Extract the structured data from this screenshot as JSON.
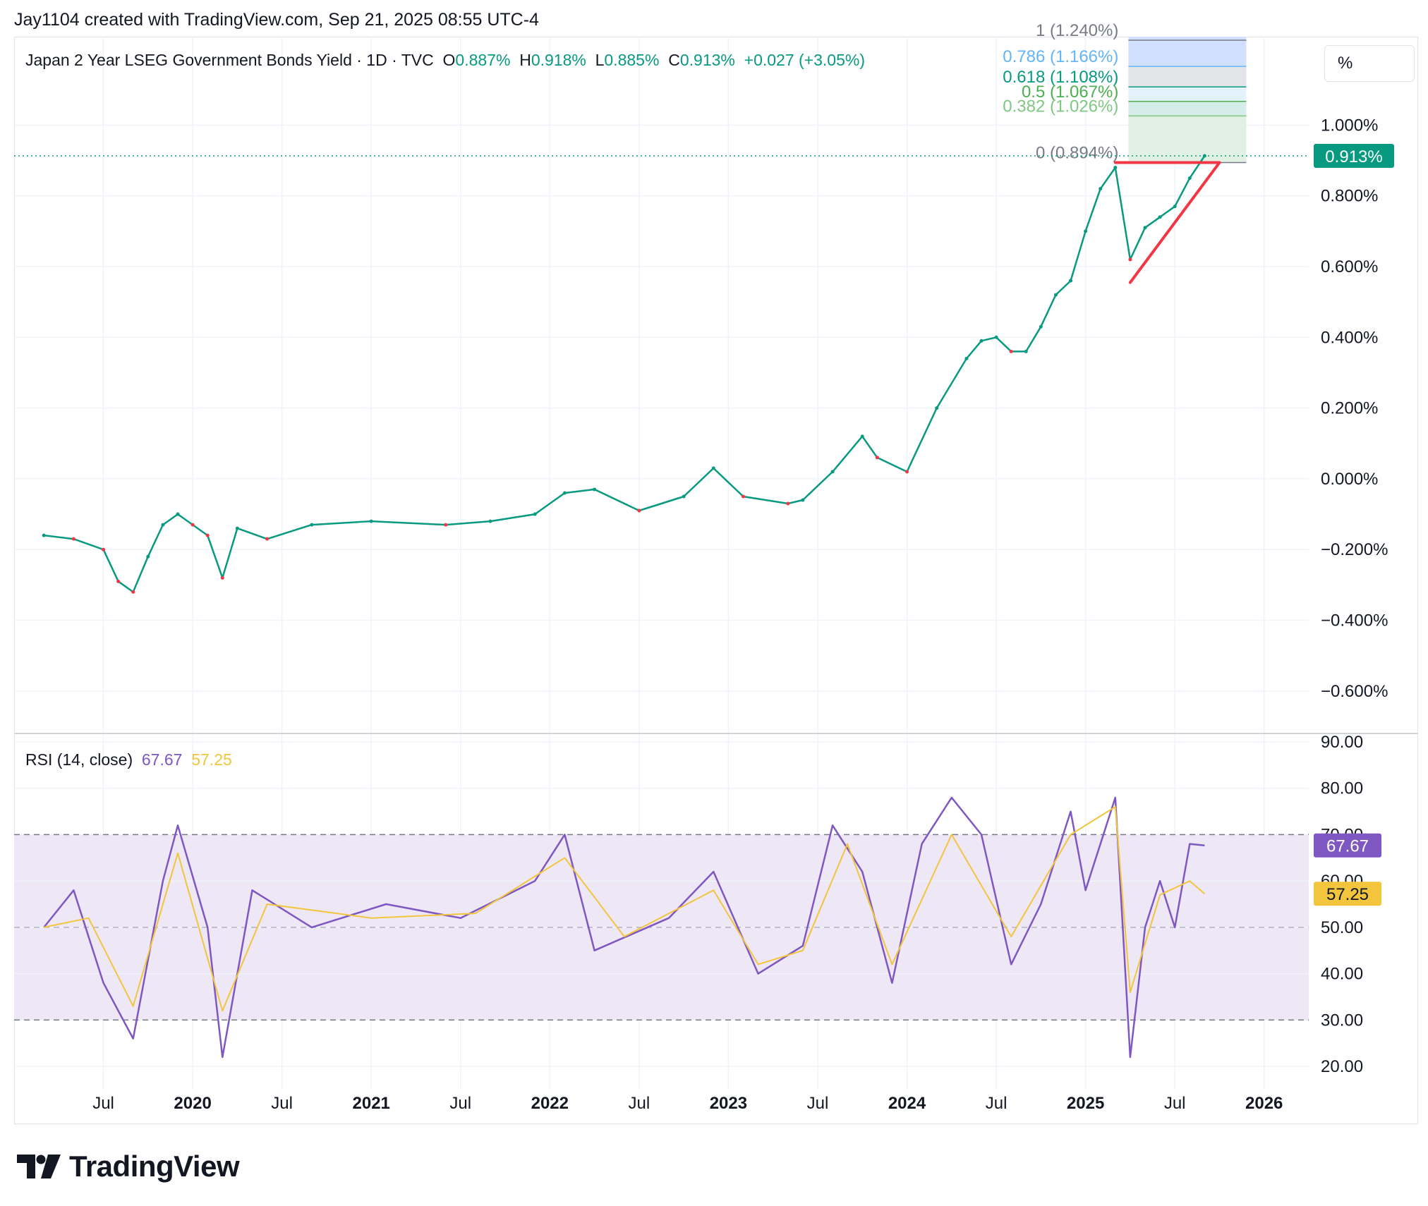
{
  "header": {
    "note": "Jay1104 created with TradingView.com, Sep 21, 2025 08:55 UTC-4"
  },
  "unit_button": {
    "label": "%"
  },
  "legend": {
    "symbol": "Japan 2 Year LSEG Government Bonds Yield · 1D · TVC",
    "o_label": "O",
    "o_value": "0.887%",
    "h_label": "H",
    "h_value": "0.918%",
    "l_label": "L",
    "l_value": "0.885%",
    "c_label": "C",
    "c_value": "0.913%",
    "change": "+0.027 (+3.05%)"
  },
  "rsi_legend": {
    "label": "RSI (14, close)",
    "rsi_value": "67.67",
    "ma_value": "57.25"
  },
  "brand": {
    "name": "TradingView"
  },
  "colors": {
    "up": "#089981",
    "down": "#f23645",
    "rsi": "#7e57c2",
    "rsi_ma": "#f2c53d",
    "trend": "#f23645",
    "rsi_band": "#ede7f6",
    "grid": "#f0f3fa"
  },
  "chart_data": [
    {
      "type": "line",
      "title": "Japan 2 Year LSEG Government Bonds Yield",
      "xlabel": "",
      "ylabel": "",
      "x_ticks": [
        "Jul",
        "2020",
        "Jul",
        "2021",
        "Jul",
        "2022",
        "Jul",
        "2023",
        "Jul",
        "2024",
        "Jul",
        "2025",
        "Jul",
        "2026"
      ],
      "y_ticks": [
        "1.000%",
        "0.800%",
        "0.600%",
        "0.400%",
        "0.200%",
        "0.000%",
        "−0.200%",
        "−0.400%",
        "−0.600%"
      ],
      "ylim": [
        -0.72,
        1.25
      ],
      "series": [
        {
          "values": [
            {
              "x": "2019-03",
              "y": -0.16
            },
            {
              "x": "2019-05",
              "y": -0.17
            },
            {
              "x": "2019-07",
              "y": -0.2
            },
            {
              "x": "2019-08",
              "y": -0.29
            },
            {
              "x": "2019-09",
              "y": -0.32
            },
            {
              "x": "2019-10",
              "y": -0.22
            },
            {
              "x": "2019-11",
              "y": -0.13
            },
            {
              "x": "2019-12",
              "y": -0.1
            },
            {
              "x": "2020-01",
              "y": -0.13
            },
            {
              "x": "2020-02",
              "y": -0.16
            },
            {
              "x": "2020-03",
              "y": -0.28
            },
            {
              "x": "2020-04",
              "y": -0.14
            },
            {
              "x": "2020-06",
              "y": -0.17
            },
            {
              "x": "2020-09",
              "y": -0.13
            },
            {
              "x": "2021-01",
              "y": -0.12
            },
            {
              "x": "2021-06",
              "y": -0.13
            },
            {
              "x": "2021-09",
              "y": -0.12
            },
            {
              "x": "2021-12",
              "y": -0.1
            },
            {
              "x": "2022-02",
              "y": -0.04
            },
            {
              "x": "2022-04",
              "y": -0.03
            },
            {
              "x": "2022-07",
              "y": -0.09
            },
            {
              "x": "2022-10",
              "y": -0.05
            },
            {
              "x": "2022-12",
              "y": 0.03
            },
            {
              "x": "2023-02",
              "y": -0.05
            },
            {
              "x": "2023-05",
              "y": -0.07
            },
            {
              "x": "2023-06",
              "y": -0.06
            },
            {
              "x": "2023-08",
              "y": 0.02
            },
            {
              "x": "2023-10",
              "y": 0.12
            },
            {
              "x": "2023-11",
              "y": 0.06
            },
            {
              "x": "2024-01",
              "y": 0.02
            },
            {
              "x": "2024-03",
              "y": 0.2
            },
            {
              "x": "2024-05",
              "y": 0.34
            },
            {
              "x": "2024-06",
              "y": 0.39
            },
            {
              "x": "2024-07",
              "y": 0.4
            },
            {
              "x": "2024-08",
              "y": 0.36
            },
            {
              "x": "2024-09",
              "y": 0.36
            },
            {
              "x": "2024-10",
              "y": 0.43
            },
            {
              "x": "2024-11",
              "y": 0.52
            },
            {
              "x": "2024-12",
              "y": 0.56
            },
            {
              "x": "2025-01",
              "y": 0.7
            },
            {
              "x": "2025-02",
              "y": 0.82
            },
            {
              "x": "2025-03",
              "y": 0.88
            },
            {
              "x": "2025-04",
              "y": 0.62
            },
            {
              "x": "2025-05",
              "y": 0.71
            },
            {
              "x": "2025-06",
              "y": 0.74
            },
            {
              "x": "2025-07",
              "y": 0.77
            },
            {
              "x": "2025-08",
              "y": 0.85
            },
            {
              "x": "2025-09",
              "y": 0.913
            }
          ]
        }
      ],
      "current_price_label": "0.913%",
      "fibonacci_levels": [
        {
          "label": "1 (1.240%)",
          "value": 1.24,
          "color": "#787b86",
          "fill": "#d1e0ff"
        },
        {
          "label": "0.786 (1.166%)",
          "value": 1.166,
          "color": "#64b5f6",
          "fill": "#e3e4e8"
        },
        {
          "label": "0.618 (1.108%)",
          "value": 1.108,
          "color": "#089981",
          "fill": "#e3f2fd"
        },
        {
          "label": "0.5 (1.067%)",
          "value": 1.067,
          "color": "#4caf50",
          "fill": "#d4ede8"
        },
        {
          "label": "0.382 (1.026%)",
          "value": 1.026,
          "color": "#81c784",
          "fill": "#e0f0e3"
        },
        {
          "label": "0 (0.894%)",
          "value": 0.894,
          "color": "#787b86",
          "fill": "#e8f5e9"
        }
      ],
      "trendlines": [
        {
          "from": {
            "x": "2025-03",
            "y": 0.894
          },
          "to": {
            "x": "2025-10",
            "y": 0.894
          }
        },
        {
          "from": {
            "x": "2025-04",
            "y": 0.555
          },
          "to": {
            "x": "2025-10",
            "y": 0.894
          }
        }
      ]
    },
    {
      "type": "line",
      "title": "RSI (14, close)",
      "xlabel": "",
      "ylabel": "",
      "y_ticks": [
        "90.00",
        "80.00",
        "70.00",
        "60.00",
        "50.00",
        "40.00",
        "30.00",
        "20.00"
      ],
      "ylim": [
        20,
        90
      ],
      "band": [
        30,
        70
      ],
      "series": [
        {
          "name": "RSI",
          "values": [
            {
              "x": "2019-03",
              "y": 50
            },
            {
              "x": "2019-05",
              "y": 58
            },
            {
              "x": "2019-07",
              "y": 38
            },
            {
              "x": "2019-09",
              "y": 26
            },
            {
              "x": "2019-11",
              "y": 60
            },
            {
              "x": "2019-12",
              "y": 72
            },
            {
              "x": "2020-02",
              "y": 50
            },
            {
              "x": "2020-03",
              "y": 22
            },
            {
              "x": "2020-05",
              "y": 58
            },
            {
              "x": "2020-09",
              "y": 50
            },
            {
              "x": "2021-02",
              "y": 55
            },
            {
              "x": "2021-07",
              "y": 52
            },
            {
              "x": "2021-12",
              "y": 60
            },
            {
              "x": "2022-02",
              "y": 70
            },
            {
              "x": "2022-04",
              "y": 45
            },
            {
              "x": "2022-09",
              "y": 52
            },
            {
              "x": "2022-12",
              "y": 62
            },
            {
              "x": "2023-03",
              "y": 40
            },
            {
              "x": "2023-06",
              "y": 46
            },
            {
              "x": "2023-08",
              "y": 72
            },
            {
              "x": "2023-10",
              "y": 62
            },
            {
              "x": "2023-12",
              "y": 38
            },
            {
              "x": "2024-02",
              "y": 68
            },
            {
              "x": "2024-04",
              "y": 78
            },
            {
              "x": "2024-06",
              "y": 70
            },
            {
              "x": "2024-08",
              "y": 42
            },
            {
              "x": "2024-10",
              "y": 55
            },
            {
              "x": "2024-12",
              "y": 75
            },
            {
              "x": "2025-01",
              "y": 58
            },
            {
              "x": "2025-03",
              "y": 78
            },
            {
              "x": "2025-04",
              "y": 22
            },
            {
              "x": "2025-05",
              "y": 50
            },
            {
              "x": "2025-06",
              "y": 60
            },
            {
              "x": "2025-07",
              "y": 50
            },
            {
              "x": "2025-08",
              "y": 68
            },
            {
              "x": "2025-09",
              "y": 67.67
            }
          ]
        },
        {
          "name": "RSI-based MA",
          "values": [
            {
              "x": "2019-03",
              "y": 50
            },
            {
              "x": "2019-06",
              "y": 52
            },
            {
              "x": "2019-09",
              "y": 33
            },
            {
              "x": "2019-12",
              "y": 66
            },
            {
              "x": "2020-03",
              "y": 32
            },
            {
              "x": "2020-06",
              "y": 55
            },
            {
              "x": "2021-01",
              "y": 52
            },
            {
              "x": "2021-08",
              "y": 53
            },
            {
              "x": "2022-02",
              "y": 65
            },
            {
              "x": "2022-06",
              "y": 48
            },
            {
              "x": "2022-12",
              "y": 58
            },
            {
              "x": "2023-03",
              "y": 42
            },
            {
              "x": "2023-06",
              "y": 45
            },
            {
              "x": "2023-09",
              "y": 68
            },
            {
              "x": "2023-12",
              "y": 42
            },
            {
              "x": "2024-04",
              "y": 70
            },
            {
              "x": "2024-08",
              "y": 48
            },
            {
              "x": "2024-12",
              "y": 70
            },
            {
              "x": "2025-03",
              "y": 76
            },
            {
              "x": "2025-04",
              "y": 36
            },
            {
              "x": "2025-06",
              "y": 57
            },
            {
              "x": "2025-08",
              "y": 60
            },
            {
              "x": "2025-09",
              "y": 57.25
            }
          ]
        }
      ],
      "rsi_label": "67.67",
      "ma_label": "57.25"
    }
  ]
}
